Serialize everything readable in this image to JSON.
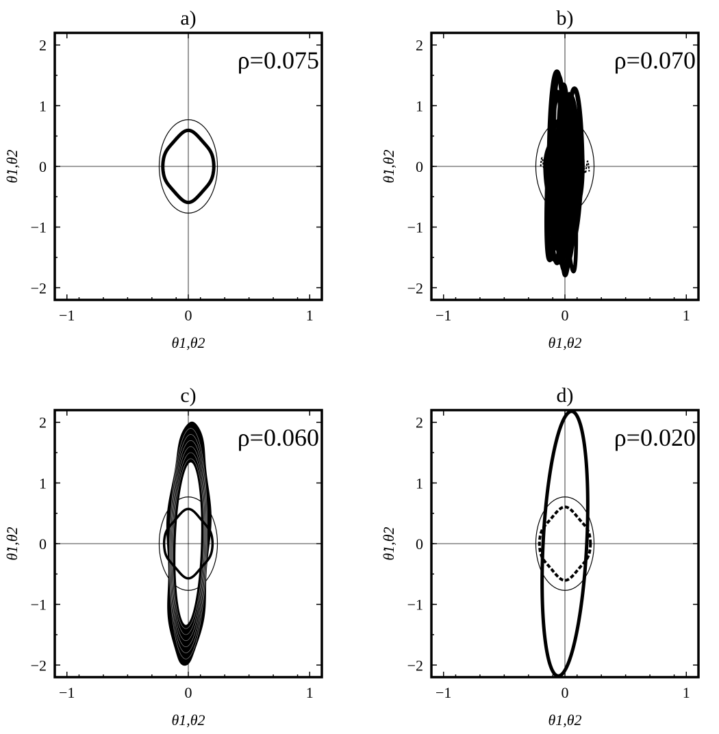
{
  "chart_data": [
    {
      "type": "line",
      "title": "a)",
      "annotation": "ρ=0.075",
      "xlabel": "θ1,θ2",
      "ylabel": "θ̇1,θ̇2",
      "xlim": [
        -1.1,
        1.1
      ],
      "ylim": [
        -2.2,
        2.2
      ],
      "xticks": [
        -1,
        0,
        1
      ],
      "yticks": [
        -2,
        -1,
        0,
        1,
        2
      ],
      "xtick_labels": [
        "−1",
        "0",
        "1"
      ],
      "ytick_labels": [
        "−2",
        "−1",
        "0",
        "1",
        "2"
      ],
      "reference_ellipse": {
        "rx": 0.24,
        "ry": 0.77
      },
      "series": [
        {
          "style": "thick-solid",
          "shape": "wavy-ring",
          "rx": 0.2,
          "ry": 0.55,
          "amp": 0.08,
          "k": 4,
          "turns": 1,
          "drift": 0
        }
      ]
    },
    {
      "type": "line",
      "title": "b)",
      "annotation": "ρ=0.070",
      "xlabel": "θ1,θ2",
      "ylabel": "θ̇1,θ̇2",
      "xlim": [
        -1.1,
        1.1
      ],
      "ylim": [
        -2.2,
        2.2
      ],
      "xticks": [
        -1,
        0,
        1
      ],
      "yticks": [
        -2,
        -1,
        0,
        1,
        2
      ],
      "xtick_labels": [
        "−1",
        "0",
        "1"
      ],
      "ytick_labels": [
        "−2",
        "−1",
        "0",
        "1",
        "2"
      ],
      "reference_ellipse": {
        "rx": 0.24,
        "ry": 0.77
      },
      "series": [
        {
          "style": "chaotic",
          "shape": "lobes",
          "y_max": 1.6,
          "y_min": -1.8,
          "x_spread": 0.18
        }
      ]
    },
    {
      "type": "line",
      "title": "c)",
      "annotation": "ρ=0.060",
      "xlabel": "θ1,θ2",
      "ylabel": "θ̇1,θ̇2",
      "xlim": [
        -1.1,
        1.1
      ],
      "ylim": [
        -2.2,
        2.2
      ],
      "xticks": [
        -1,
        0,
        1
      ],
      "yticks": [
        -2,
        -1,
        0,
        1,
        2
      ],
      "xtick_labels": [
        "−1",
        "0",
        "1"
      ],
      "ytick_labels": [
        "−2",
        "−1",
        "0",
        "1",
        "2"
      ],
      "reference_ellipse": {
        "rx": 0.24,
        "ry": 0.77
      },
      "series": [
        {
          "style": "filled-band",
          "shape": "band",
          "outer_rx": 0.17,
          "outer_ry": 2.0,
          "inner_rx": 0.11,
          "inner_ry": 1.35
        },
        {
          "style": "thin-solid",
          "shape": "wavy-ring",
          "rx": 0.19,
          "ry": 0.52,
          "amp": 0.1,
          "k": 4,
          "turns": 1,
          "drift": 0
        }
      ]
    },
    {
      "type": "line",
      "title": "d)",
      "annotation": "ρ=0.020",
      "xlabel": "θ1,θ2",
      "ylabel": "θ̇1,θ̇2",
      "xlim": [
        -1.1,
        1.1
      ],
      "ylim": [
        -2.2,
        2.2
      ],
      "xticks": [
        -1,
        0,
        1
      ],
      "yticks": [
        -2,
        -1,
        0,
        1,
        2
      ],
      "xtick_labels": [
        "−1",
        "0",
        "1"
      ],
      "ytick_labels": [
        "−2",
        "−1",
        "0",
        "1",
        "2"
      ],
      "reference_ellipse": {
        "rx": 0.24,
        "ry": 0.77
      },
      "series": [
        {
          "style": "thick-solid",
          "shape": "tilted-ellipse",
          "rx": 0.18,
          "ry": 2.18,
          "tilt": 0.025
        },
        {
          "style": "thick-dashed",
          "shape": "wavy-ring",
          "rx": 0.2,
          "ry": 0.55,
          "amp": 0.1,
          "k": 4,
          "turns": 1,
          "drift": 0
        }
      ]
    }
  ]
}
